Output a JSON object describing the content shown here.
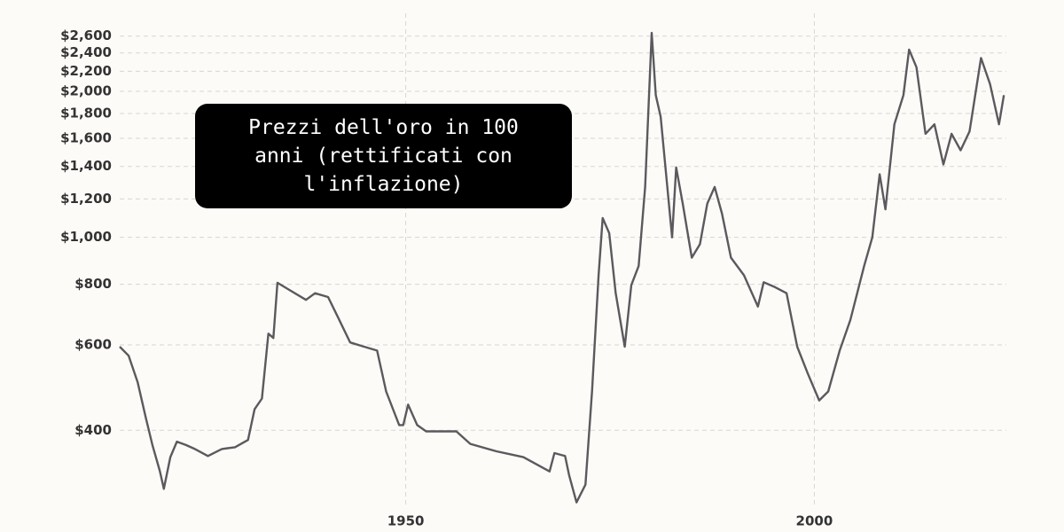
{
  "chart_data": {
    "type": "line",
    "title": "Prezzi dell'oro in 100 anni (rettificati con l'inflazione)",
    "x": [
      1915,
      1916.1,
      1917.2,
      1918.2,
      1919,
      1919.9,
      1920.4,
      1921.2,
      1922,
      1923.1,
      1924.2,
      1925.8,
      1927.5,
      1929.1,
      1930.7,
      1931.5,
      1932.4,
      1933.2,
      1933.8,
      1934.3,
      1935.6,
      1937.8,
      1938.9,
      1940.5,
      1941.6,
      1943.2,
      1944.9,
      1946.5,
      1947.6,
      1949.2,
      1949.7,
      1950.3,
      1951.4,
      1952.5,
      1954.6,
      1956.2,
      1957.9,
      1961.1,
      1964.4,
      1967.6,
      1968.2,
      1969.5,
      1970,
      1970.9,
      1972,
      1972.8,
      1973.6,
      1974.1,
      1974.9,
      1975.7,
      1976.8,
      1977.6,
      1978.5,
      1979.3,
      1980.1,
      1980.6,
      1981.2,
      1981.9,
      1982.6,
      1983.1,
      1983.9,
      1985,
      1986,
      1986.9,
      1987.8,
      1988.7,
      1989.8,
      1991.4,
      1993.1,
      1993.8,
      1995.2,
      1996.6,
      1997.9,
      1999.2,
      2000.6,
      2001.7,
      2003.1,
      2004.4,
      2006.1,
      2007.1,
      2008,
      2008.7,
      2009.8,
      2010.9,
      2011.6,
      2012.5,
      2013.6,
      2014.7,
      2015.8,
      2016.8,
      2017.9,
      2019,
      2020.4,
      2021.5,
      2022.6,
      2023.2
    ],
    "values": [
      595,
      570,
      502,
      424,
      373,
      330,
      303,
      352,
      379,
      373,
      366,
      354,
      366,
      369,
      382,
      442,
      465,
      633,
      620,
      806,
      782,
      743,
      767,
      753,
      690,
      607,
      595,
      584,
      481,
      410,
      410,
      452,
      410,
      398,
      398,
      398,
      375,
      362,
      352,
      329,
      359,
      354,
      323,
      284,
      309,
      481,
      835,
      1096,
      1020,
      767,
      595,
      797,
      873,
      1270,
      2640,
      1964,
      1773,
      1328,
      1000,
      1394,
      1174,
      908,
      968,
      1174,
      1270,
      1119,
      908,
      835,
      720,
      808,
      789,
      767,
      595,
      524,
      461,
      481,
      584,
      675,
      873,
      1000,
      1349,
      1142,
      1710,
      1964,
      2439,
      2243,
      1635,
      1710,
      1413,
      1635,
      1512,
      1654,
      2343,
      2070,
      1710,
      1964
    ],
    "color": "#5a5a5e",
    "xlim": [
      1915,
      2023.5
    ],
    "xticks": [
      1950,
      2000
    ],
    "ylim": [
      280,
      2720
    ],
    "log_y": true,
    "yticks": [
      {
        "value": 400,
        "label": "$400"
      },
      {
        "value": 600,
        "label": "$600"
      },
      {
        "value": 800,
        "label": "$800"
      },
      {
        "value": 1000,
        "label": "$1,000"
      },
      {
        "value": 1200,
        "label": "$1,200"
      },
      {
        "value": 1400,
        "label": "$1,400"
      },
      {
        "value": 1600,
        "label": "$1,600"
      },
      {
        "value": 1800,
        "label": "$1,800"
      },
      {
        "value": 2000,
        "label": "$2,000"
      },
      {
        "value": 2200,
        "label": "$2,200"
      },
      {
        "value": 2400,
        "label": "$2,400"
      },
      {
        "value": 2600,
        "label": "$2,600"
      }
    ],
    "grid": true
  }
}
